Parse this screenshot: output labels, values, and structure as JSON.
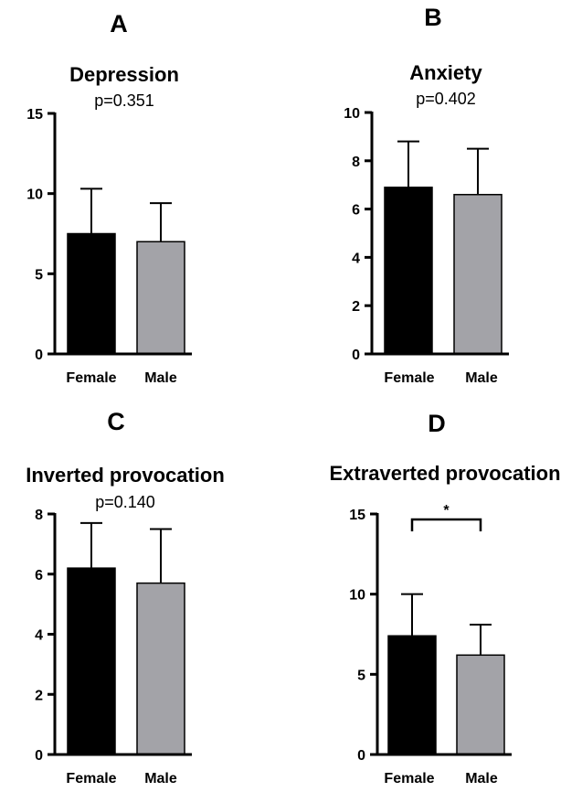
{
  "chart_data": [
    {
      "type": "bar",
      "panel": "A",
      "title": "Depression",
      "subtitle": "p=0.351",
      "categories": [
        "Female",
        "Male"
      ],
      "values": [
        7.5,
        7.0
      ],
      "errors": [
        2.8,
        2.4
      ],
      "ylim": [
        0,
        15
      ],
      "yticks": [
        0,
        5,
        10,
        15
      ],
      "colors": [
        "#000000",
        "#a3a3a8"
      ],
      "significance": null
    },
    {
      "type": "bar",
      "panel": "B",
      "title": "Anxiety",
      "subtitle": "p=0.402",
      "categories": [
        "Female",
        "Male"
      ],
      "values": [
        6.9,
        6.6
      ],
      "errors": [
        1.9,
        1.9
      ],
      "ylim": [
        0,
        10
      ],
      "yticks": [
        0,
        2,
        4,
        6,
        8,
        10
      ],
      "colors": [
        "#000000",
        "#a3a3a8"
      ],
      "significance": null
    },
    {
      "type": "bar",
      "panel": "C",
      "title": "Inverted provocation",
      "subtitle": "p=0.140",
      "categories": [
        "Female",
        "Male"
      ],
      "values": [
        6.2,
        5.7
      ],
      "errors": [
        1.5,
        1.8
      ],
      "ylim": [
        0,
        8
      ],
      "yticks": [
        0,
        2,
        4,
        6,
        8
      ],
      "colors": [
        "#000000",
        "#a3a3a8"
      ],
      "significance": null
    },
    {
      "type": "bar",
      "panel": "D",
      "title": "Extraverted provocation",
      "subtitle": "",
      "categories": [
        "Female",
        "Male"
      ],
      "values": [
        7.4,
        6.2
      ],
      "errors": [
        2.6,
        1.9
      ],
      "ylim": [
        0,
        15
      ],
      "yticks": [
        0,
        5,
        10,
        15
      ],
      "colors": [
        "#000000",
        "#a3a3a8"
      ],
      "significance": "*"
    }
  ]
}
